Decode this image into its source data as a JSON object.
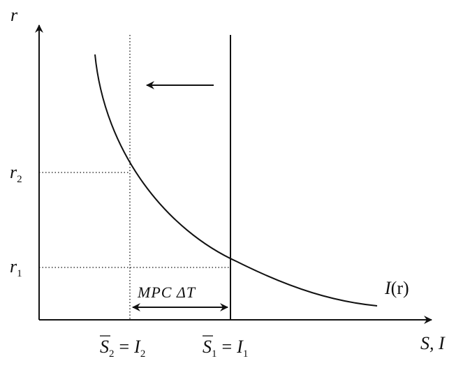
{
  "axes": {
    "y_label": "r",
    "x_label": "S, I"
  },
  "curve": {
    "label_main": "I",
    "label_arg": "(r)"
  },
  "y_ticks": [
    {
      "base": "r",
      "sub": "2"
    },
    {
      "base": "r",
      "sub": "1"
    }
  ],
  "x_ticks": [
    {
      "s": "S",
      "s_sub": "2",
      "eq": "=",
      "i": "I",
      "i_sub": "2"
    },
    {
      "s": "S",
      "s_sub": "1",
      "eq": "=",
      "i": "I",
      "i_sub": "1"
    }
  ],
  "shift_label": "MPC ΔT",
  "colors": {
    "ink": "#111111",
    "background": "#ffffff"
  }
}
